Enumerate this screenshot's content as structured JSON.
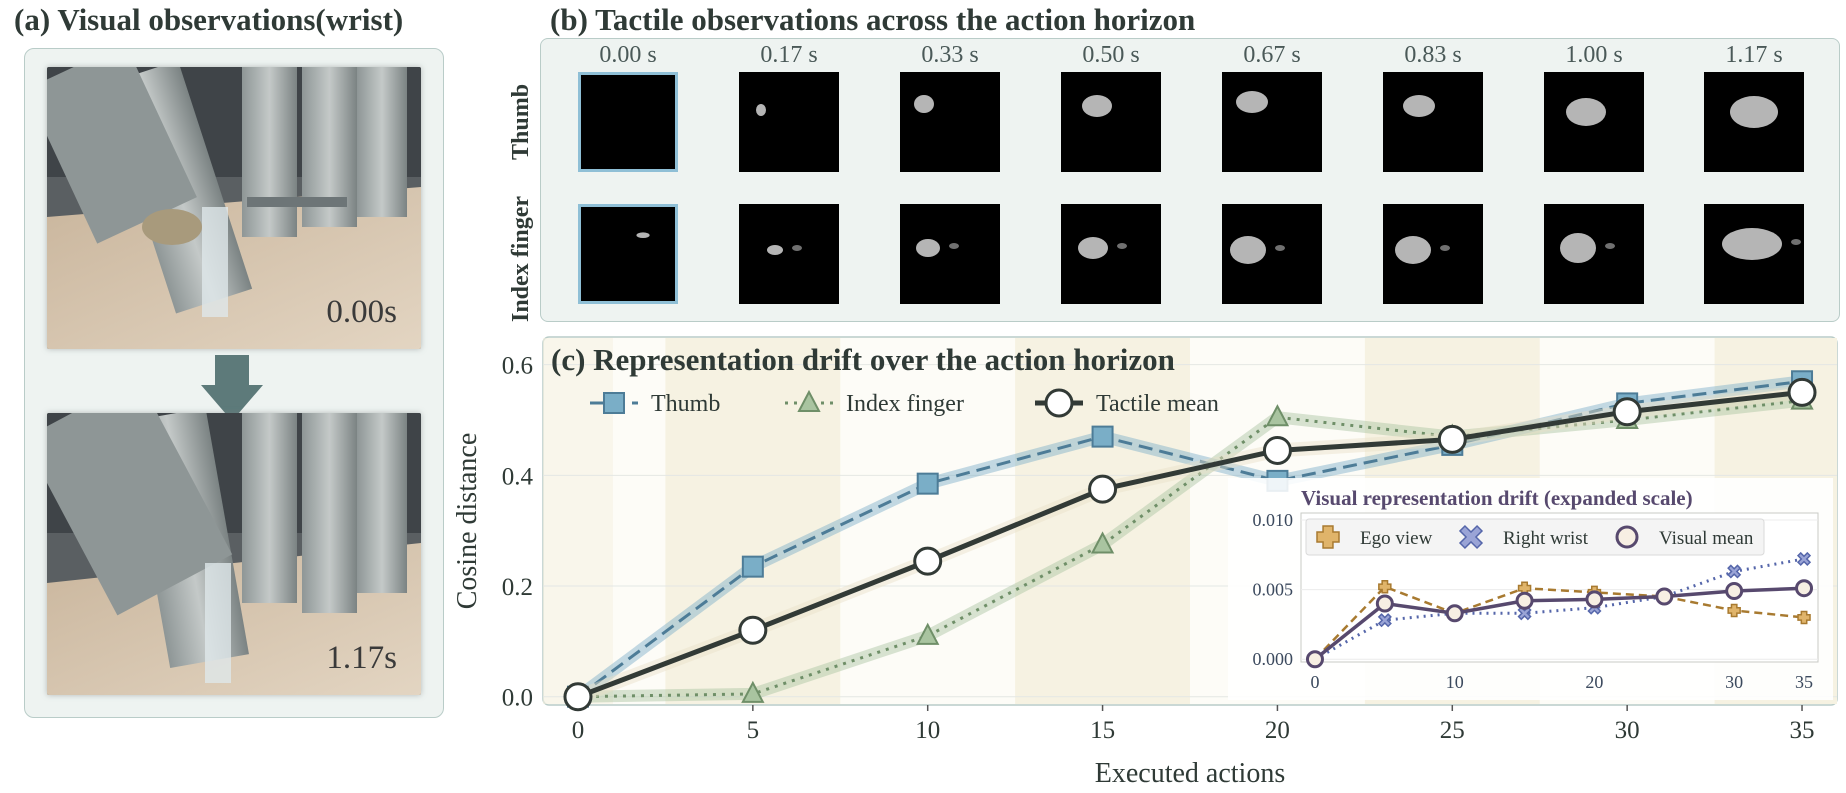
{
  "panel_a": {
    "title": "(a) Visual observations(wrist)",
    "images": [
      {
        "caption": "0.00s",
        "description": "wrist camera view of robotic hand grasping transparent tube"
      },
      {
        "caption": "1.17s",
        "description": "wrist camera view of robotic hand grasping transparent tube"
      }
    ]
  },
  "panel_b": {
    "title": "(b) Tactile observations across the action horizon",
    "row_labels": [
      "Thumb",
      "Index finger"
    ],
    "time_labels": [
      "0.00 s",
      "0.17 s",
      "0.33 s",
      "0.50 s",
      "0.67 s",
      "0.83 s",
      "1.00 s",
      "1.17 s"
    ],
    "highlighted_column": 0
  },
  "colors": {
    "thumb": "#7aaec7",
    "thumb_edge": "#4d7c97",
    "index": "#a9c4a0",
    "index_edge": "#6f8f68",
    "mean": "#323a36",
    "ego": "#e0b46a",
    "ego_edge": "#a87a30",
    "wrist": "#9aa4d6",
    "wrist_edge": "#5566aa",
    "visual_mean": "#57496e",
    "band": "#f6f2e2",
    "panel_bg": "#eef3f1"
  },
  "chart_data": [
    {
      "type": "line",
      "title": "(c) Representation drift over the action horizon",
      "xlabel": "Executed actions",
      "ylabel": "Cosine distance",
      "x": [
        0,
        5,
        10,
        15,
        20,
        25,
        30,
        35
      ],
      "xticks": [
        0,
        5,
        10,
        15,
        20,
        25,
        30,
        35
      ],
      "yticks": [
        0.0,
        0.2,
        0.4,
        0.6
      ],
      "xlim": [
        -1,
        36
      ],
      "ylim": [
        -0.015,
        0.65
      ],
      "legend": "top-left",
      "series": [
        {
          "name": "Thumb",
          "values": [
            0.0,
            0.235,
            0.385,
            0.47,
            0.39,
            0.455,
            0.53,
            0.57
          ],
          "marker": "square",
          "line": "dashed"
        },
        {
          "name": "Index finger",
          "values": [
            0.0,
            0.005,
            0.11,
            0.275,
            0.505,
            0.47,
            0.5,
            0.535
          ],
          "marker": "triangle",
          "line": "dotted"
        },
        {
          "name": "Tactile mean",
          "values": [
            0.0,
            0.12,
            0.245,
            0.375,
            0.445,
            0.465,
            0.515,
            0.55
          ],
          "marker": "circle",
          "line": "solid"
        }
      ]
    },
    {
      "type": "line",
      "title": "Visual representation drift (expanded scale)",
      "x": [
        0,
        5,
        10,
        15,
        20,
        25,
        30,
        35
      ],
      "xticks": [
        0,
        10,
        20,
        30,
        35
      ],
      "yticks": [
        0.0,
        0.005,
        0.01
      ],
      "ytick_labels": [
        "0.000",
        "0.005",
        "0.010"
      ],
      "xlim": [
        -1,
        36
      ],
      "ylim": [
        -0.0002,
        0.0105
      ],
      "legend": "top",
      "series": [
        {
          "name": "Ego view",
          "values": [
            0.0,
            0.0052,
            0.0033,
            0.0051,
            0.0048,
            0.0045,
            0.0035,
            0.003
          ],
          "marker": "plus",
          "line": "dashed"
        },
        {
          "name": "Right wrist",
          "values": [
            0.0,
            0.0028,
            0.0033,
            0.0033,
            0.0037,
            0.0045,
            0.0063,
            0.0072
          ],
          "marker": "x",
          "line": "dotted"
        },
        {
          "name": "Visual mean",
          "values": [
            0.0,
            0.004,
            0.0033,
            0.0042,
            0.0043,
            0.0045,
            0.0049,
            0.0051
          ],
          "marker": "circle",
          "line": "solid"
        }
      ]
    }
  ]
}
